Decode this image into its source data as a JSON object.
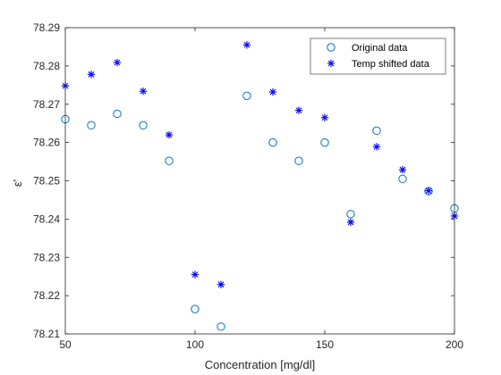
{
  "chart_data": {
    "type": "scatter",
    "title": "",
    "xlabel": "Concentration [mg/dl]",
    "ylabel": "ε'",
    "xlim": [
      50,
      200
    ],
    "ylim": [
      78.21,
      78.29
    ],
    "xticks": [
      50,
      100,
      150,
      200
    ],
    "yticks": [
      78.21,
      78.22,
      78.23,
      78.24,
      78.25,
      78.26,
      78.27,
      78.28,
      78.29
    ],
    "grid": false,
    "legend_position": "top-right",
    "series": [
      {
        "name": "Original data",
        "marker": "circle",
        "color": "#0072BD",
        "x": [
          50,
          60,
          70,
          80,
          90,
          100,
          110,
          120,
          130,
          140,
          150,
          160,
          170,
          180,
          190,
          200
        ],
        "y": [
          78.2661,
          78.2645,
          78.2675,
          78.2645,
          78.2552,
          78.2165,
          78.2119,
          78.2722,
          78.26,
          78.2552,
          78.26,
          78.2413,
          78.2631,
          78.2505,
          78.2473,
          78.2428
        ]
      },
      {
        "name": "Temp shifted data",
        "marker": "asterisk",
        "color": "#0000FF",
        "x": [
          50,
          60,
          70,
          80,
          90,
          100,
          110,
          120,
          130,
          140,
          150,
          160,
          170,
          180,
          190,
          200
        ],
        "y": [
          78.2748,
          78.2778,
          78.2809,
          78.2734,
          78.262,
          78.2255,
          78.2229,
          78.2855,
          78.2732,
          78.2684,
          78.2665,
          78.2392,
          78.2589,
          78.2529,
          78.2474,
          78.2408
        ]
      }
    ]
  }
}
